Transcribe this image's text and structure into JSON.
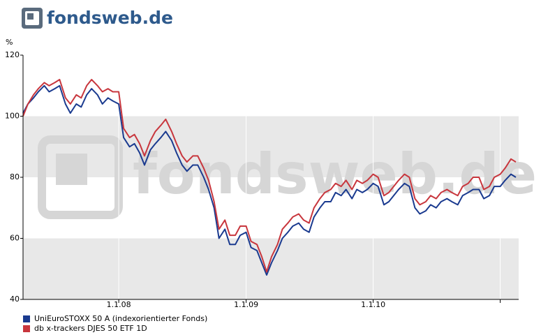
{
  "logo": "fondsweb.de",
  "chart_data": {
    "type": "line",
    "watermark": "fondsweb.de",
    "y_label": "%",
    "x": [
      "2007-04-01",
      "2007-04-15",
      "2007-05-01",
      "2007-05-15",
      "2007-06-01",
      "2007-06-15",
      "2007-07-01",
      "2007-07-15",
      "2007-08-01",
      "2007-08-15",
      "2007-09-01",
      "2007-09-15",
      "2007-10-01",
      "2007-10-15",
      "2007-11-01",
      "2007-11-15",
      "2007-12-01",
      "2007-12-15",
      "2008-01-01",
      "2008-01-15",
      "2008-02-01",
      "2008-02-15",
      "2008-03-01",
      "2008-03-15",
      "2008-04-01",
      "2008-04-15",
      "2008-05-01",
      "2008-05-15",
      "2008-06-01",
      "2008-06-15",
      "2008-07-01",
      "2008-07-15",
      "2008-08-01",
      "2008-08-15",
      "2008-09-01",
      "2008-09-15",
      "2008-10-01",
      "2008-10-15",
      "2008-11-01",
      "2008-11-15",
      "2008-12-01",
      "2008-12-15",
      "2009-01-01",
      "2009-01-15",
      "2009-02-01",
      "2009-02-15",
      "2009-03-01",
      "2009-03-15",
      "2009-04-01",
      "2009-04-15",
      "2009-05-01",
      "2009-05-15",
      "2009-06-01",
      "2009-06-15",
      "2009-07-01",
      "2009-07-15",
      "2009-08-01",
      "2009-08-15",
      "2009-09-01",
      "2009-09-15",
      "2009-10-01",
      "2009-10-15",
      "2009-11-01",
      "2009-11-15",
      "2009-12-01",
      "2009-12-15",
      "2010-01-01",
      "2010-01-15",
      "2010-02-01",
      "2010-02-15",
      "2010-03-01",
      "2010-03-15",
      "2010-04-01",
      "2010-04-15",
      "2010-05-01",
      "2010-05-15",
      "2010-06-01",
      "2010-06-15",
      "2010-07-01",
      "2010-07-15",
      "2010-08-01",
      "2010-08-15",
      "2010-09-01",
      "2010-09-15",
      "2010-10-01",
      "2010-10-15",
      "2010-11-01",
      "2010-11-15",
      "2010-12-01",
      "2010-12-15",
      "2011-01-01",
      "2011-01-15",
      "2011-02-01",
      "2011-02-15"
    ],
    "series": [
      {
        "name": "UniEuroSTOXX 50 A (indexorientierter Fonds)",
        "color": "#1a3a8f",
        "values": [
          101,
          104,
          106,
          108,
          110,
          108,
          109,
          110,
          104,
          101,
          104,
          103,
          107,
          109,
          107,
          104,
          106,
          105,
          104,
          93,
          90,
          91,
          88,
          84,
          89,
          91,
          93,
          95,
          92,
          88,
          84,
          82,
          84,
          84,
          80,
          76,
          70,
          60,
          63,
          58,
          58,
          61,
          62,
          57,
          56,
          52,
          48,
          52,
          56,
          60,
          62,
          64,
          65,
          63,
          62,
          67,
          70,
          72,
          72,
          75,
          74,
          76,
          73,
          76,
          75,
          76,
          78,
          77,
          71,
          72,
          74,
          76,
          78,
          77,
          70,
          68,
          69,
          71,
          70,
          72,
          73,
          72,
          71,
          74,
          75,
          76,
          76,
          73,
          74,
          77,
          77,
          79,
          81,
          80
        ]
      },
      {
        "name": "db x-trackers DJES 50 ETF 1D",
        "color": "#c8363d",
        "values": [
          100,
          104,
          107,
          109,
          111,
          110,
          111,
          112,
          106,
          104,
          107,
          106,
          110,
          112,
          110,
          108,
          109,
          108,
          108,
          96,
          93,
          94,
          91,
          87,
          92,
          95,
          97,
          99,
          95,
          91,
          87,
          85,
          87,
          87,
          83,
          79,
          72,
          63,
          66,
          61,
          61,
          64,
          64,
          59,
          58,
          54,
          49,
          54,
          58,
          63,
          65,
          67,
          68,
          66,
          65,
          70,
          73,
          75,
          76,
          78,
          77,
          79,
          76,
          79,
          78,
          79,
          81,
          80,
          74,
          75,
          77,
          79,
          81,
          80,
          73,
          71,
          72,
          74,
          73,
          75,
          76,
          75,
          74,
          77,
          78,
          80,
          80,
          76,
          77,
          80,
          81,
          83,
          86,
          85
        ]
      }
    ],
    "xlim": [
      "2007-04-01",
      "2011-02-23"
    ],
    "xticks": [
      {
        "value": "2008-01-01",
        "label": "1.1.08"
      },
      {
        "value": "2009-01-01",
        "label": "1.1.09"
      },
      {
        "value": "2010-01-01",
        "label": "1.1.10"
      },
      {
        "value": "2011-01-01",
        "label": null
      }
    ],
    "ylim": [
      40,
      120
    ],
    "yticks": [
      40,
      60,
      80,
      100,
      120
    ],
    "bands": [
      [
        80,
        100
      ],
      [
        40,
        60
      ]
    ],
    "grid": true,
    "legend": "bottom-left"
  }
}
